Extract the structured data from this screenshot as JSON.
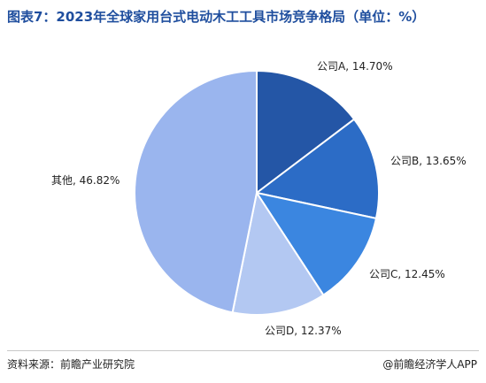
{
  "header": {
    "title": "图表7：2023年全球家用台式电动木工工具市场竞争格局（单位：%）"
  },
  "footer": {
    "source": "资料来源：前瞻产业研究院",
    "credit": "@前瞻经济学人APP"
  },
  "chart_data": {
    "type": "pie",
    "unit": "%",
    "slices": [
      {
        "label": "公司A, 14.70%",
        "name": "公司A",
        "value": 14.7,
        "color": "#2456a6"
      },
      {
        "label": "公司B, 13.65%",
        "name": "公司B",
        "value": 13.65,
        "color": "#2c6cc6"
      },
      {
        "label": "公司C, 12.45%",
        "name": "公司C",
        "value": 12.45,
        "color": "#3b86e0"
      },
      {
        "label": "公司D, 12.37%",
        "name": "公司D",
        "value": 12.37,
        "color": "#b3c8f2"
      },
      {
        "label": "其他, 46.82%",
        "name": "其他",
        "value": 46.82,
        "color": "#9ab5ee"
      }
    ],
    "start_angle_deg": 0,
    "direction": "clockwise"
  }
}
